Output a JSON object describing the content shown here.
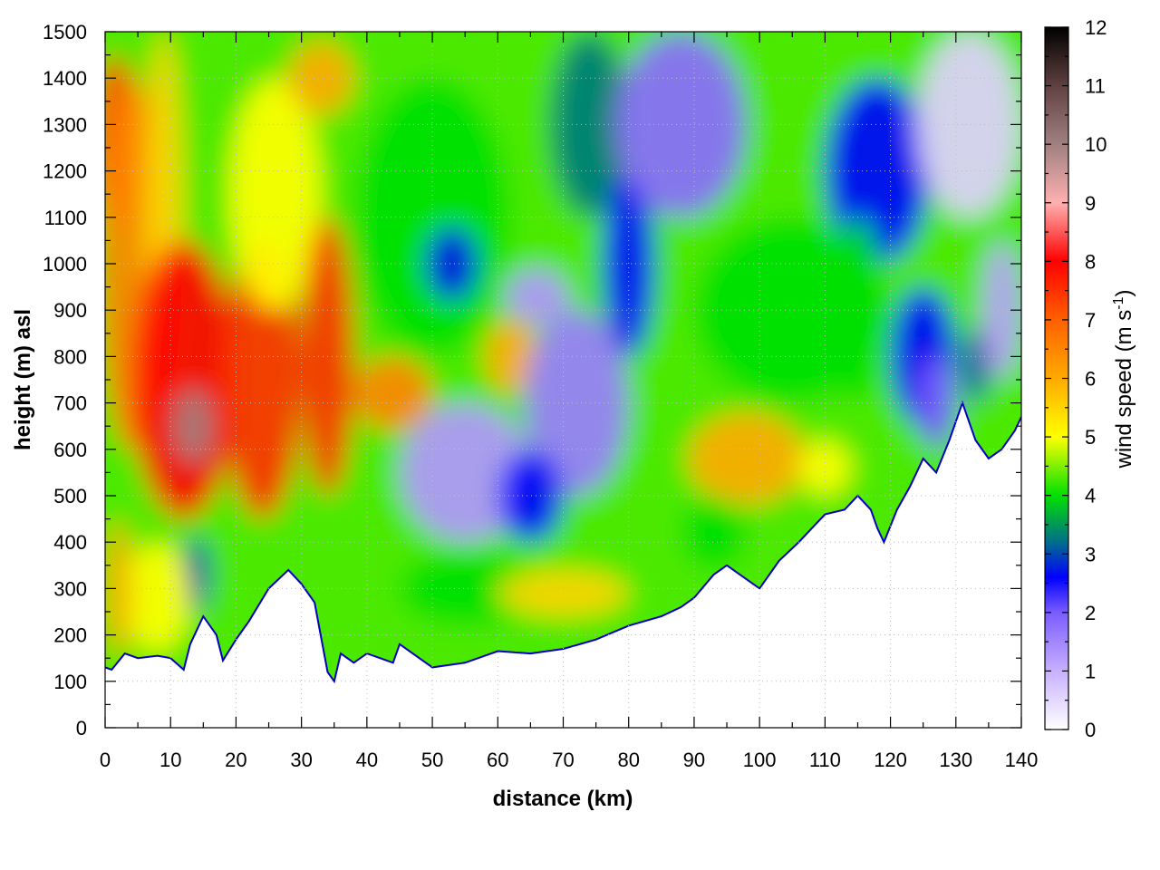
{
  "chart_data": {
    "type": "heatmap",
    "title": "",
    "xlabel": "distance (km)",
    "ylabel": "height (m) asl",
    "xlim": [
      0,
      140
    ],
    "ylim": [
      0,
      1500
    ],
    "x_ticks": [
      "0",
      "10",
      "20",
      "30",
      "40",
      "50",
      "60",
      "70",
      "80",
      "90",
      "100",
      "110",
      "120",
      "130",
      "140"
    ],
    "y_ticks": [
      "0",
      "100",
      "200",
      "300",
      "400",
      "500",
      "600",
      "700",
      "800",
      "900",
      "1000",
      "1100",
      "1200",
      "1300",
      "1400",
      "1500"
    ],
    "grid": true,
    "colorbar": {
      "label": "wind speed (m s",
      "label_sup": "-1",
      "label_end": ")",
      "range": [
        0,
        12
      ],
      "ticks": [
        "0",
        "1",
        "2",
        "3",
        "4",
        "5",
        "6",
        "7",
        "8",
        "9",
        "10",
        "11",
        "12"
      ],
      "colors": [
        {
          "v": 0,
          "c": "#ffffff"
        },
        {
          "v": 1,
          "c": "#c8b0ff"
        },
        {
          "v": 2,
          "c": "#7a5cff"
        },
        {
          "v": 2.6,
          "c": "#0000ff"
        },
        {
          "v": 3.2,
          "c": "#006e8c"
        },
        {
          "v": 4,
          "c": "#00e000"
        },
        {
          "v": 5,
          "c": "#ffff00"
        },
        {
          "v": 6,
          "c": "#ffaa00"
        },
        {
          "v": 7,
          "c": "#ff6000"
        },
        {
          "v": 8,
          "c": "#ff0000"
        },
        {
          "v": 9,
          "c": "#ffb0b0"
        },
        {
          "v": 10,
          "c": "#a08080"
        },
        {
          "v": 11,
          "c": "#604040"
        },
        {
          "v": 12,
          "c": "#000000"
        }
      ]
    },
    "terrain": {
      "x": [
        0,
        1,
        3,
        5,
        8,
        10,
        12,
        13,
        15,
        17,
        18,
        20,
        22,
        25,
        28,
        30,
        32,
        34,
        35,
        36,
        38,
        40,
        42,
        44,
        45,
        47,
        50,
        55,
        60,
        65,
        70,
        75,
        80,
        85,
        88,
        90,
        93,
        95,
        98,
        100,
        103,
        106,
        108,
        110,
        113,
        115,
        117,
        118,
        119,
        121,
        123,
        125,
        127,
        129,
        130,
        131,
        133,
        135,
        137,
        139,
        140
      ],
      "y": [
        130,
        125,
        160,
        150,
        155,
        150,
        125,
        180,
        240,
        200,
        145,
        190,
        230,
        300,
        340,
        310,
        270,
        120,
        100,
        160,
        140,
        160,
        150,
        140,
        180,
        160,
        130,
        140,
        165,
        160,
        170,
        190,
        220,
        240,
        260,
        280,
        330,
        350,
        320,
        300,
        360,
        400,
        430,
        460,
        470,
        500,
        470,
        430,
        400,
        470,
        520,
        580,
        550,
        620,
        660,
        700,
        620,
        580,
        600,
        640,
        670
      ]
    },
    "regions": [
      {
        "label": "",
        "x": 1.5,
        "y": 1250,
        "rx": 3.5,
        "ry": 200,
        "value": 7.5
      },
      {
        "label": "",
        "x": 1.5,
        "y": 850,
        "rx": 1.5,
        "ry": 250,
        "value": 4.0
      },
      {
        "label": "",
        "x": 4,
        "y": 1000,
        "rx": 5,
        "ry": 400,
        "value": 6.5
      },
      {
        "label": "",
        "x": 9,
        "y": 1100,
        "rx": 3,
        "ry": 400,
        "value": 5.5
      },
      {
        "label": "",
        "x": 12,
        "y": 750,
        "rx": 8,
        "ry": 300,
        "value": 8.0
      },
      {
        "label": "",
        "x": 13.5,
        "y": 650,
        "rx": 3,
        "ry": 80,
        "value": 10.0
      },
      {
        "label": "",
        "x": 24,
        "y": 750,
        "rx": 6,
        "ry": 300,
        "value": 7.5
      },
      {
        "label": "",
        "x": 26,
        "y": 1150,
        "rx": 7,
        "ry": 250,
        "value": 5.0
      },
      {
        "label": "",
        "x": 34,
        "y": 800,
        "rx": 4,
        "ry": 300,
        "value": 7.5
      },
      {
        "label": "",
        "x": 44,
        "y": 720,
        "rx": 6,
        "ry": 80,
        "value": 6.5
      },
      {
        "label": "",
        "x": 33,
        "y": 1400,
        "rx": 5,
        "ry": 80,
        "value": 6.0
      },
      {
        "label": "",
        "x": 14,
        "y": 330,
        "rx": 2,
        "ry": 80,
        "value": 3.0
      },
      {
        "label": "",
        "x": 8,
        "y": 280,
        "rx": 5,
        "ry": 120,
        "value": 5.0
      },
      {
        "label": "",
        "x": 2,
        "y": 300,
        "rx": 2,
        "ry": 150,
        "value": 6.0
      },
      {
        "label": "",
        "x": 50,
        "y": 1100,
        "rx": 12,
        "ry": 300,
        "value": 4.0
      },
      {
        "label": "",
        "x": 53,
        "y": 1000,
        "rx": 4,
        "ry": 80,
        "value": 2.7
      },
      {
        "label": "",
        "x": 55,
        "y": 550,
        "rx": 10,
        "ry": 150,
        "value": 1.3
      },
      {
        "label": "",
        "x": 62,
        "y": 800,
        "rx": 4,
        "ry": 80,
        "value": 6.0
      },
      {
        "label": "",
        "x": 66,
        "y": 930,
        "rx": 5,
        "ry": 60,
        "value": 1.3
      },
      {
        "label": "",
        "x": 72,
        "y": 700,
        "rx": 8,
        "ry": 200,
        "value": 1.6
      },
      {
        "label": "",
        "x": 65,
        "y": 500,
        "rx": 5,
        "ry": 100,
        "value": 2.6
      },
      {
        "label": "",
        "x": 55,
        "y": 300,
        "rx": 10,
        "ry": 80,
        "value": 4.0
      },
      {
        "label": "",
        "x": 70,
        "y": 290,
        "rx": 10,
        "ry": 50,
        "value": 5.5
      },
      {
        "label": "",
        "x": 74,
        "y": 1300,
        "rx": 6,
        "ry": 200,
        "value": 3.3
      },
      {
        "label": "",
        "x": 80,
        "y": 1000,
        "rx": 4,
        "ry": 200,
        "value": 2.6
      },
      {
        "label": "",
        "x": 88,
        "y": 1300,
        "rx": 10,
        "ry": 200,
        "value": 1.8
      },
      {
        "label": "",
        "x": 105,
        "y": 900,
        "rx": 15,
        "ry": 200,
        "value": 4.0
      },
      {
        "label": "",
        "x": 98,
        "y": 580,
        "rx": 9,
        "ry": 100,
        "value": 6.0
      },
      {
        "label": "",
        "x": 110,
        "y": 560,
        "rx": 4,
        "ry": 60,
        "value": 5.0
      },
      {
        "label": "",
        "x": 93,
        "y": 420,
        "rx": 5,
        "ry": 80,
        "value": 4.0
      },
      {
        "label": "",
        "x": 118,
        "y": 1200,
        "rx": 8,
        "ry": 200,
        "value": 2.6
      },
      {
        "label": "",
        "x": 125,
        "y": 800,
        "rx": 5,
        "ry": 150,
        "value": 2.6
      },
      {
        "label": "",
        "x": 115,
        "y": 900,
        "rx": 4,
        "ry": 200,
        "value": 4.0
      },
      {
        "label": "",
        "x": 132,
        "y": 1300,
        "rx": 8,
        "ry": 200,
        "value": 0.6
      },
      {
        "label": "",
        "x": 133,
        "y": 780,
        "rx": 2,
        "ry": 80,
        "value": 3.0
      },
      {
        "label": "",
        "x": 137,
        "y": 900,
        "rx": 3,
        "ry": 150,
        "value": 1.2
      },
      {
        "label": "",
        "x": 127,
        "y": 700,
        "rx": 3,
        "ry": 100,
        "value": 2.0
      }
    ]
  }
}
